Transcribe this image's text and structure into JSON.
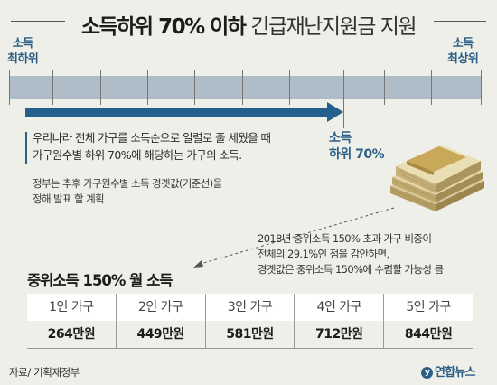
{
  "title": {
    "bold": "소득하위 70% 이하",
    "light": "긴급재난지원금 지원"
  },
  "scale": {
    "left_label": [
      "소득",
      "최하위"
    ],
    "right_label": [
      "소득",
      "최상위"
    ]
  },
  "description": [
    "우리나라 전체 가구를 소득순으로 일렬로 줄 세웠을 때",
    "가구원수별 하위 70%에 해당하는 가구의 소득."
  ],
  "note": [
    "정부는 추후 가구원수별 소득 경곗값(기준선)을",
    "정해 발표 할 계획"
  ],
  "marker_label": [
    "소득",
    "하위 70%"
  ],
  "explanation": [
    "2018년 중위소득 150% 초과 가구 비중이",
    "전체의 29.1%인 점을 감안하면,",
    "경곗값은 중위소득 150%에 수렴할 가능성 큼"
  ],
  "table": {
    "title": "중위소득 150% 월 소득",
    "headers": [
      "1인 가구",
      "2인 가구",
      "3인 가구",
      "4인 가구",
      "5인 가구"
    ],
    "values": [
      "264만원",
      "449만원",
      "581만원",
      "712만원",
      "844만원"
    ]
  },
  "source": "자료/ 기획재정부",
  "logo": "연합뉴스",
  "colors": {
    "accent": "#25608c",
    "bar": "#aebdc8",
    "background": "#efefe9"
  },
  "icons": {
    "money": "money-stack-icon"
  }
}
